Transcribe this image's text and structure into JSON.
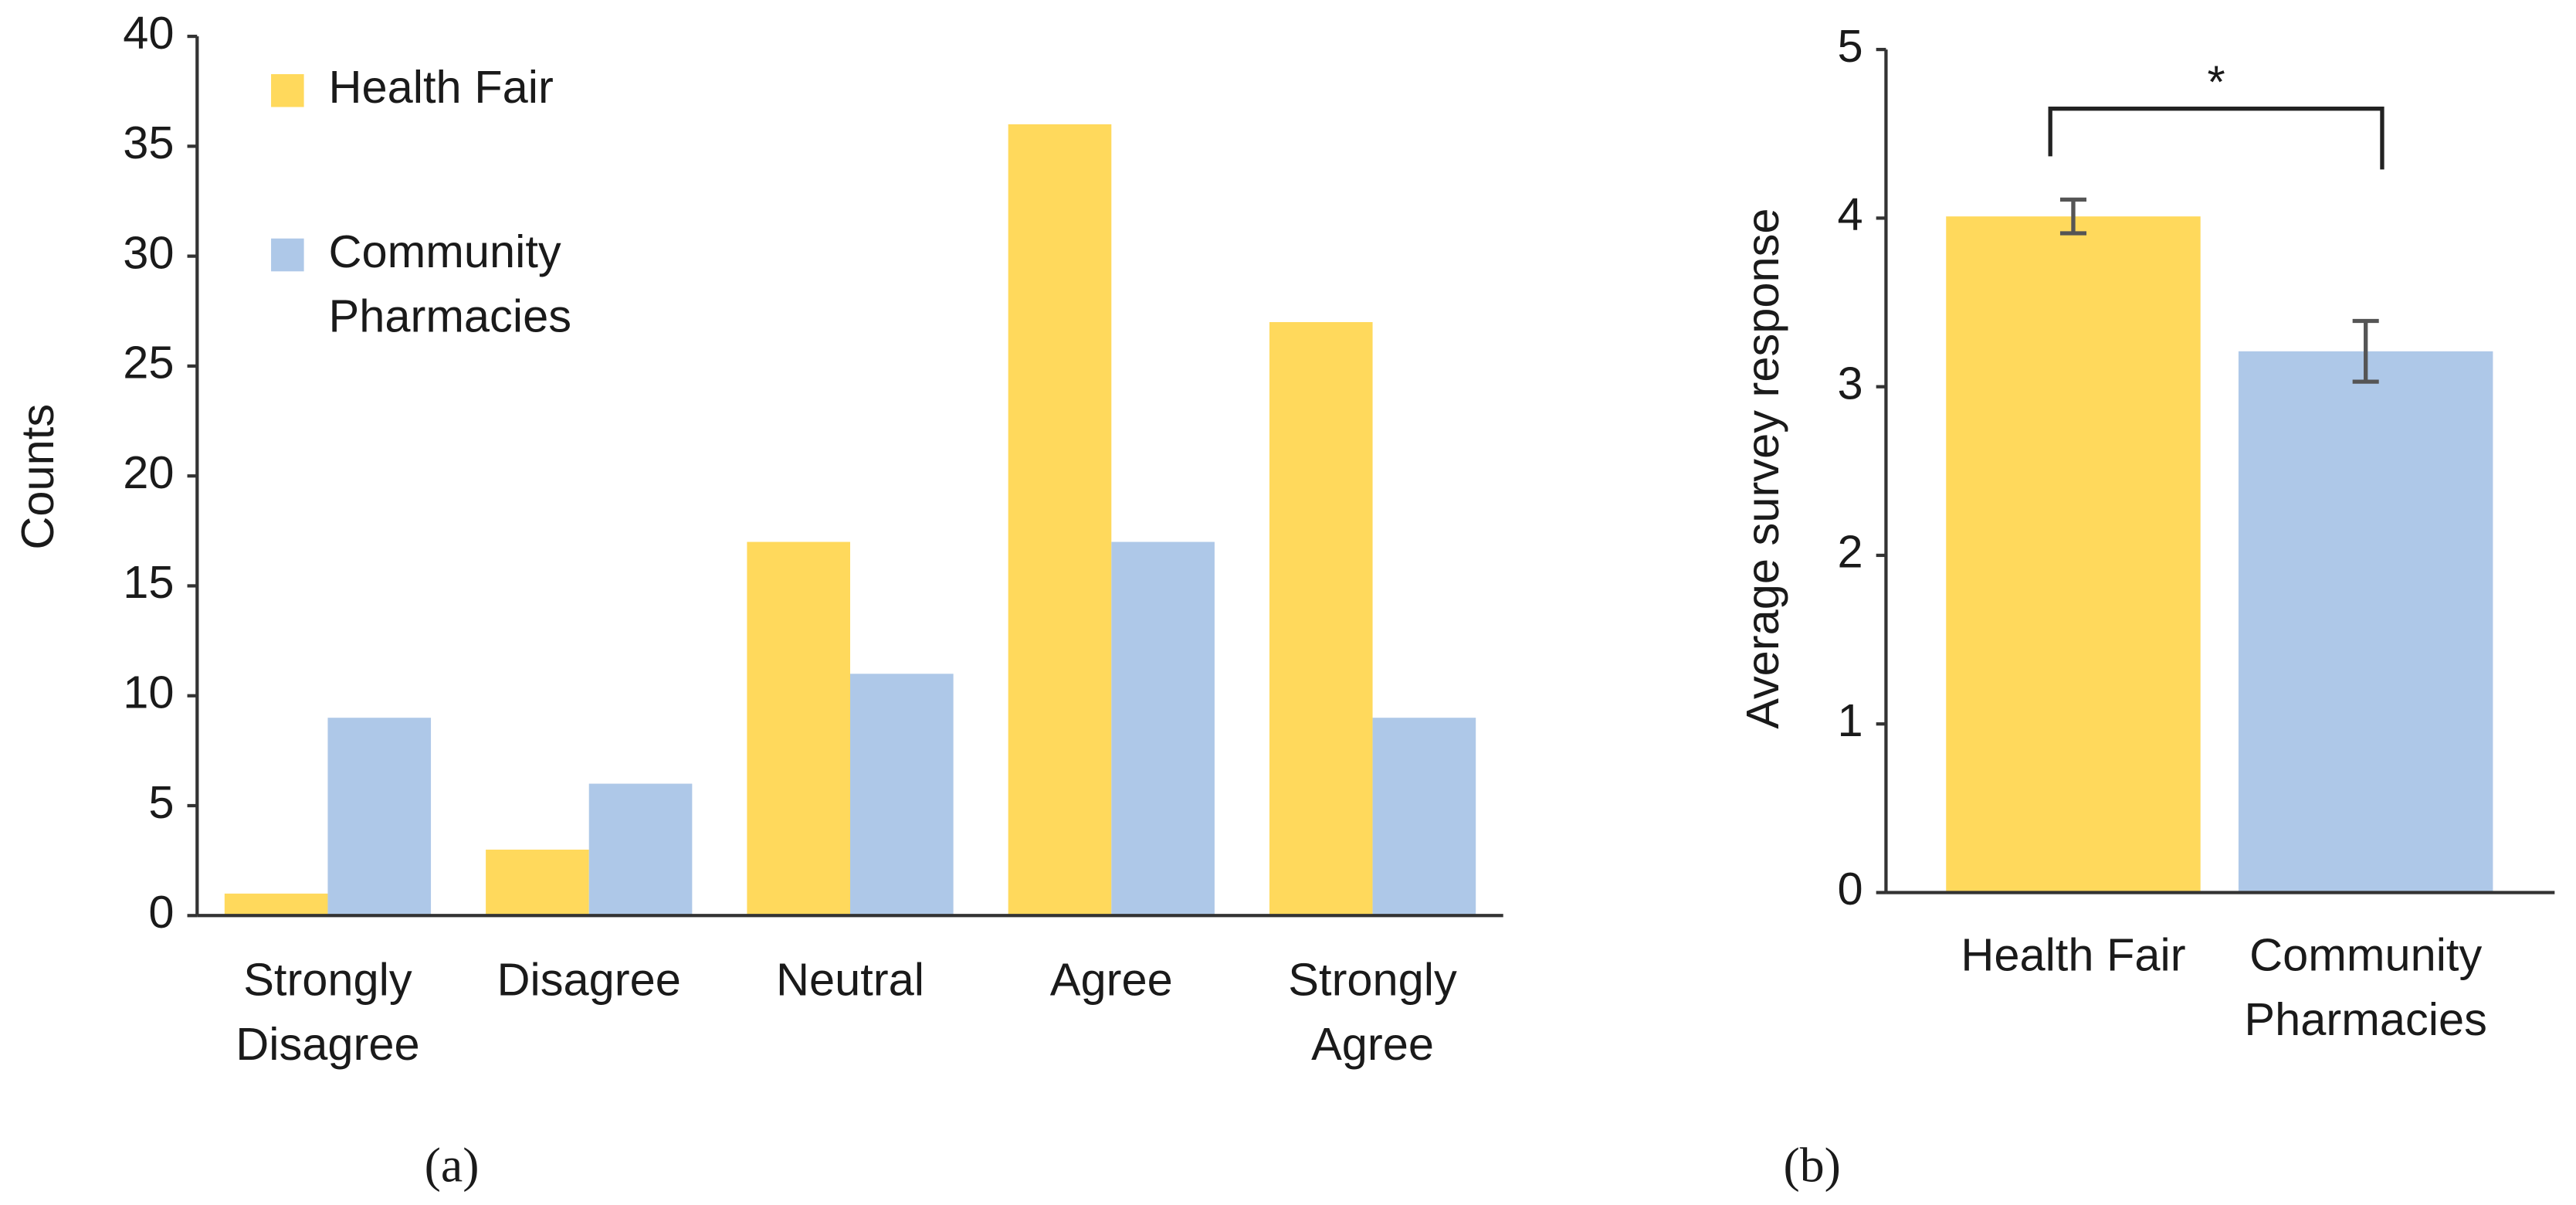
{
  "chart_data": [
    {
      "type": "bar",
      "caption": "(a)",
      "y_label": "Counts",
      "categories": [
        "Strongly Disagree",
        "Disagree",
        "Neutral",
        "Agree",
        "Strongly Agree"
      ],
      "series": [
        {
          "name": "Health Fair",
          "color": "#ffd95c",
          "values": [
            1,
            3,
            17,
            36,
            27
          ]
        },
        {
          "name": "Community Pharmacies",
          "color": "#aec8e8",
          "values": [
            9,
            6,
            11,
            17,
            9
          ]
        }
      ],
      "ylim": [
        0,
        40
      ],
      "yticks": [
        0,
        5,
        10,
        15,
        20,
        25,
        30,
        35,
        40
      ],
      "grid": false,
      "legend": "upper left"
    },
    {
      "type": "bar",
      "caption": "(b)",
      "y_label": "Average survey response",
      "categories": [
        "Health Fair",
        "Community Pharmacies"
      ],
      "values": [
        4.01,
        3.21
      ],
      "errors": [
        0.1,
        0.18
      ],
      "colors": [
        "#ffd95c",
        "#aec8e8"
      ],
      "annotation": "*",
      "ylim": [
        0,
        5
      ],
      "yticks": [
        0,
        1,
        2,
        3,
        4,
        5
      ],
      "grid": false
    }
  ]
}
